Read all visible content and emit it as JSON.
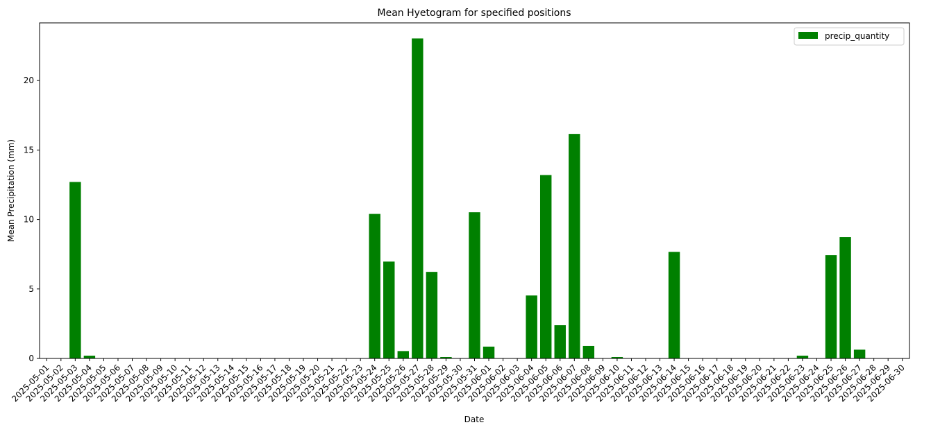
{
  "chart_data": {
    "type": "bar",
    "title": "Mean Hyetogram for specified positions",
    "xlabel": "Date",
    "ylabel": "Mean Precipitation (mm)",
    "ylim": [
      0,
      24.15
    ],
    "yticks": [
      0,
      5,
      10,
      15,
      20
    ],
    "grid": false,
    "legend_placement": "top-right",
    "bar_color": "#008000",
    "series": [
      {
        "name": "precip_quantity",
        "values": [
          0,
          0,
          12.7,
          0.2,
          0,
          0,
          0,
          0,
          0,
          0,
          0,
          0,
          0,
          0,
          0,
          0,
          0,
          0,
          0,
          0,
          0,
          0,
          0,
          10.4,
          6.97,
          0.53,
          23.03,
          6.23,
          0.1,
          0,
          10.52,
          0.85,
          0,
          0,
          4.53,
          13.2,
          2.39,
          16.16,
          0.9,
          0,
          0.1,
          0,
          0,
          0,
          7.67,
          0,
          0,
          0,
          0,
          0,
          0,
          0,
          0,
          0.2,
          0,
          7.43,
          8.73,
          0.63,
          0,
          0,
          0
        ]
      }
    ],
    "categories": [
      "2025-05-01",
      "2025-05-02",
      "2025-05-03",
      "2025-05-04",
      "2025-05-05",
      "2025-05-06",
      "2025-05-07",
      "2025-05-08",
      "2025-05-09",
      "2025-05-10",
      "2025-05-11",
      "2025-05-12",
      "2025-05-13",
      "2025-05-14",
      "2025-05-15",
      "2025-05-16",
      "2025-05-17",
      "2025-05-18",
      "2025-05-19",
      "2025-05-20",
      "2025-05-21",
      "2025-05-22",
      "2025-05-23",
      "2025-05-24",
      "2025-05-25",
      "2025-05-26",
      "2025-05-27",
      "2025-05-28",
      "2025-05-29",
      "2025-05-30",
      "2025-05-31",
      "2025-06-01",
      "2025-06-02",
      "2025-06-03",
      "2025-06-04",
      "2025-06-05",
      "2025-06-06",
      "2025-06-07",
      "2025-06-08",
      "2025-06-09",
      "2025-06-10",
      "2025-06-11",
      "2025-06-12",
      "2025-06-13",
      "2025-06-14",
      "2025-06-15",
      "2025-06-16",
      "2025-06-17",
      "2025-06-18",
      "2025-06-19",
      "2025-06-20",
      "2025-06-21",
      "2025-06-22",
      "2025-06-23",
      "2025-06-24",
      "2025-06-25",
      "2025-06-26",
      "2025-06-27",
      "2025-06-28",
      "2025-06-29",
      "2025-06-30"
    ]
  }
}
